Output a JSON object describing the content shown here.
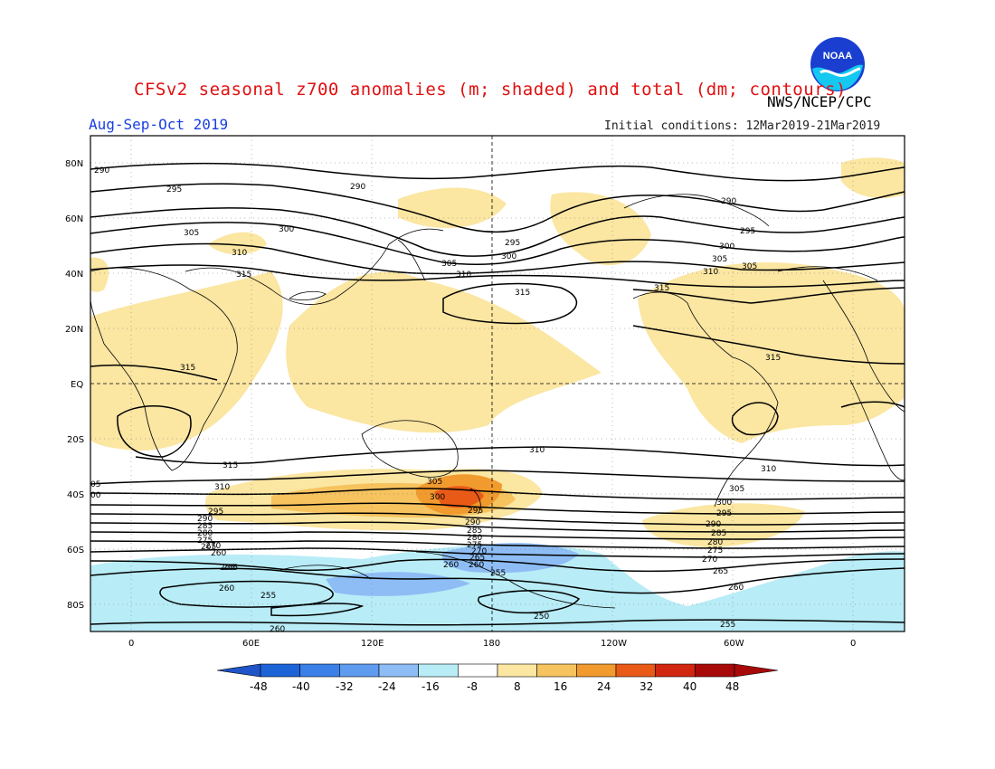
{
  "header": {
    "title": "CFSv2 seasonal z700 anomalies (m; shaded) and total (dm; contours)",
    "agency": "NWS/NCEP/CPC",
    "period": "Aug-Sep-Oct 2019",
    "initial_conditions": "Initial conditions: 12Mar2019-21Mar2019",
    "logo_text": "NOAA"
  },
  "map": {
    "lat_labels": [
      "80N",
      "60N",
      "40N",
      "20N",
      "EQ",
      "20S",
      "40S",
      "60S",
      "80S"
    ],
    "lon_labels": [
      "0",
      "60E",
      "120E",
      "180",
      "120W",
      "60W",
      "0"
    ],
    "contour_labels": [
      "290",
      "295",
      "305",
      "300",
      "310",
      "315",
      "290",
      "295",
      "305",
      "300",
      "305",
      "310",
      "315",
      "315",
      "290",
      "295",
      "300",
      "305",
      "310",
      "315",
      "315",
      "310",
      "315",
      "310",
      "305",
      "300",
      "295",
      "290",
      "285",
      "280",
      "275",
      "270",
      "265",
      "260",
      "255",
      "260",
      "255",
      "260",
      "250",
      "255",
      "310",
      "305",
      "300",
      "295",
      "290",
      "285",
      "280",
      "275",
      "270",
      "265",
      "260",
      "255",
      "05",
      "00",
      "295",
      "290",
      "285",
      "280",
      "275",
      "270",
      "265",
      "260",
      "255",
      "260"
    ]
  },
  "colorbar": {
    "ticks": [
      "-48",
      "-40",
      "-32",
      "-24",
      "-16",
      "-8",
      "8",
      "16",
      "24",
      "32",
      "40",
      "48"
    ],
    "colors": [
      "#1c63d8",
      "#3a80e8",
      "#5f9cf0",
      "#8ebdf5",
      "#b8ecf7",
      "#ffffff",
      "#fbe6a2",
      "#f6c35e",
      "#f19a2e",
      "#ea5a17",
      "#d12610",
      "#a80a0a"
    ],
    "end_low_color": "#1f55c8",
    "end_high_color": "#a80a0a"
  }
}
